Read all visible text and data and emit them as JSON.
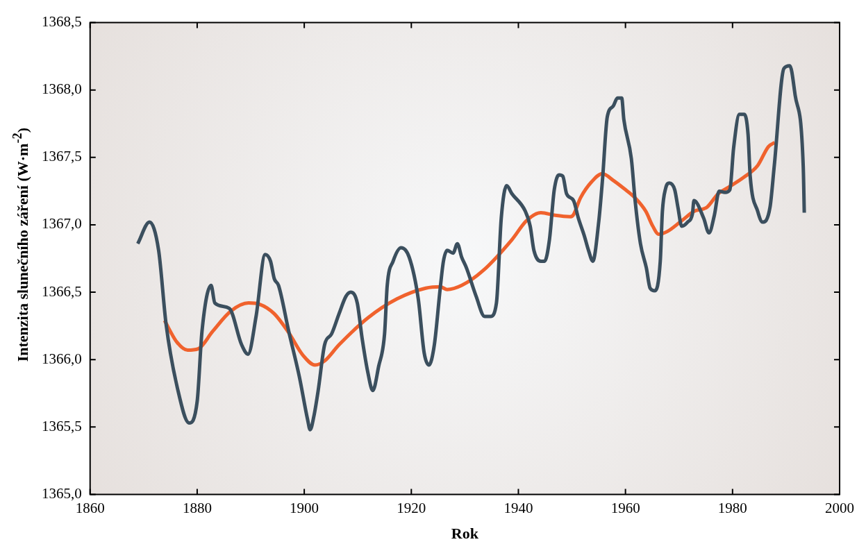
{
  "chart_data": {
    "type": "line",
    "xlabel": "Rok",
    "ylabel": "Intenzita slunečního záření (W·m$^{-2}$)",
    "xlim": [
      1860,
      2000
    ],
    "xticks": [
      1860,
      1880,
      1900,
      1920,
      1940,
      1960,
      1980,
      2000
    ],
    "ylim": [
      1365.0,
      1368.5
    ],
    "yticks": [
      {
        "value": 1365.0,
        "label": "1365,0"
      },
      {
        "value": 1365.5,
        "label": "1365,5"
      },
      {
        "value": 1366.0,
        "label": "1366,0"
      },
      {
        "value": 1366.5,
        "label": "1366,5"
      },
      {
        "value": 1367.0,
        "label": "1367,0"
      },
      {
        "value": 1367.5,
        "label": "1367,5"
      },
      {
        "value": 1368.0,
        "label": "1368,0"
      },
      {
        "value": 1368.5,
        "label": "1368,5"
      }
    ],
    "grid": false,
    "legend": false,
    "line_style": "solid",
    "series": [
      {
        "color": "#3b4f5e",
        "x": [
          1868.9,
          1871.1,
          1872.8,
          1874.2,
          1876.3,
          1878.5,
          1880.0,
          1880.9,
          1882.6,
          1883.3,
          1886.0,
          1888.3,
          1889.5,
          1891.0,
          1892.7,
          1893.7,
          1894.4,
          1895.2,
          1897.1,
          1899.1,
          1900.6,
          1901.1,
          1901.8,
          1902.6,
          1903.8,
          1905.1,
          1906.5,
          1907.8,
          1908.7,
          1909.9,
          1910.8,
          1911.9,
          1912.8,
          1913.9,
          1915.0,
          1915.5,
          1916.6,
          1918.1,
          1919.6,
          1921.3,
          1922.4,
          1923.3,
          1924.3,
          1925.4,
          1926.0,
          1926.7,
          1927.8,
          1928.6,
          1929.4,
          1930.3,
          1932.1,
          1933.7,
          1934.8,
          1935.9,
          1936.8,
          1937.8,
          1938.8,
          1941.3,
          1942.2,
          1942.9,
          1944.2,
          1944.9,
          1945.8,
          1946.7,
          1947.6,
          1948.3,
          1949.0,
          1950.3,
          1951.2,
          1952.3,
          1953.1,
          1953.9,
          1955.0,
          1955.7,
          1956.6,
          1957.7,
          1958.5,
          1959.3,
          1959.7,
          1961.1,
          1961.8,
          1962.8,
          1963.9,
          1964.6,
          1965.5,
          1966.5,
          1966.9,
          1967.5,
          1968.2,
          1969.2,
          1969.8,
          1970.5,
          1971.6,
          1972.5,
          1972.8,
          1974.6,
          1975.6,
          1976.6,
          1977.5,
          1978.6,
          1979.5,
          1980.2,
          1981.3,
          1982.2,
          1982.9,
          1983.3,
          1984.7,
          1985.6,
          1987.0,
          1987.8,
          1989.6,
          1990.7,
          1991.7,
          1993.2,
          1993.4
        ],
        "values": [
          1366.86,
          1367.02,
          1366.81,
          1366.26,
          1365.79,
          1365.53,
          1365.69,
          1366.21,
          1366.55,
          1366.42,
          1366.38,
          1366.11,
          1366.04,
          1366.32,
          1366.78,
          1366.73,
          1366.6,
          1366.55,
          1366.21,
          1365.87,
          1365.56,
          1365.48,
          1365.58,
          1365.77,
          1366.11,
          1366.19,
          1366.34,
          1366.47,
          1366.5,
          1366.42,
          1366.16,
          1365.9,
          1365.77,
          1365.95,
          1366.19,
          1366.55,
          1366.73,
          1366.83,
          1366.76,
          1366.45,
          1366.05,
          1365.96,
          1366.11,
          1366.53,
          1366.73,
          1366.81,
          1366.79,
          1366.86,
          1366.76,
          1366.68,
          1366.47,
          1366.32,
          1366.32,
          1366.42,
          1367.05,
          1367.29,
          1367.23,
          1367.1,
          1366.99,
          1366.81,
          1366.73,
          1366.73,
          1366.89,
          1367.26,
          1367.37,
          1367.36,
          1367.23,
          1367.18,
          1367.05,
          1366.92,
          1366.81,
          1366.73,
          1367.02,
          1367.33,
          1367.8,
          1367.88,
          1367.94,
          1367.94,
          1367.78,
          1367.49,
          1367.18,
          1366.86,
          1366.68,
          1366.53,
          1366.51,
          1366.73,
          1367.1,
          1367.27,
          1367.31,
          1367.26,
          1367.13,
          1366.99,
          1367.02,
          1367.08,
          1367.18,
          1367.05,
          1366.94,
          1367.07,
          1367.25,
          1367.24,
          1367.26,
          1367.57,
          1367.82,
          1367.82,
          1367.67,
          1367.36,
          1367.1,
          1367.02,
          1367.13,
          1367.44,
          1368.16,
          1368.18,
          1367.96,
          1367.44,
          1367.09
        ]
      },
      {
        "color": "#f0622d",
        "x": [
          1873.9,
          1876.2,
          1878.2,
          1880.2,
          1882.9,
          1886.3,
          1889.6,
          1891.7,
          1894.4,
          1897.1,
          1899.8,
          1902.0,
          1903.8,
          1906.5,
          1911.9,
          1917.3,
          1922.7,
          1925.4,
          1926.7,
          1929.4,
          1933.4,
          1938.8,
          1941.5,
          1944.2,
          1946.9,
          1949.6,
          1950.2,
          1951.6,
          1953.7,
          1955.7,
          1957.7,
          1959.7,
          1961.8,
          1963.8,
          1965.1,
          1966.2,
          1967.8,
          1970.5,
          1972.8,
          1975.2,
          1977.3,
          1979.3,
          1982.0,
          1984.7,
          1986.7,
          1987.9
        ],
        "values": [
          1366.29,
          1366.13,
          1366.07,
          1366.08,
          1366.21,
          1366.36,
          1366.42,
          1366.41,
          1366.34,
          1366.2,
          1366.03,
          1365.96,
          1365.99,
          1366.11,
          1366.31,
          1366.45,
          1366.53,
          1366.54,
          1366.52,
          1366.55,
          1366.66,
          1366.89,
          1367.03,
          1367.09,
          1367.07,
          1367.06,
          1367.07,
          1367.2,
          1367.32,
          1367.38,
          1367.33,
          1367.27,
          1367.2,
          1367.1,
          1366.99,
          1366.93,
          1366.95,
          1367.03,
          1367.1,
          1367.13,
          1367.23,
          1367.28,
          1367.35,
          1367.44,
          1367.58,
          1367.61
        ]
      }
    ]
  }
}
